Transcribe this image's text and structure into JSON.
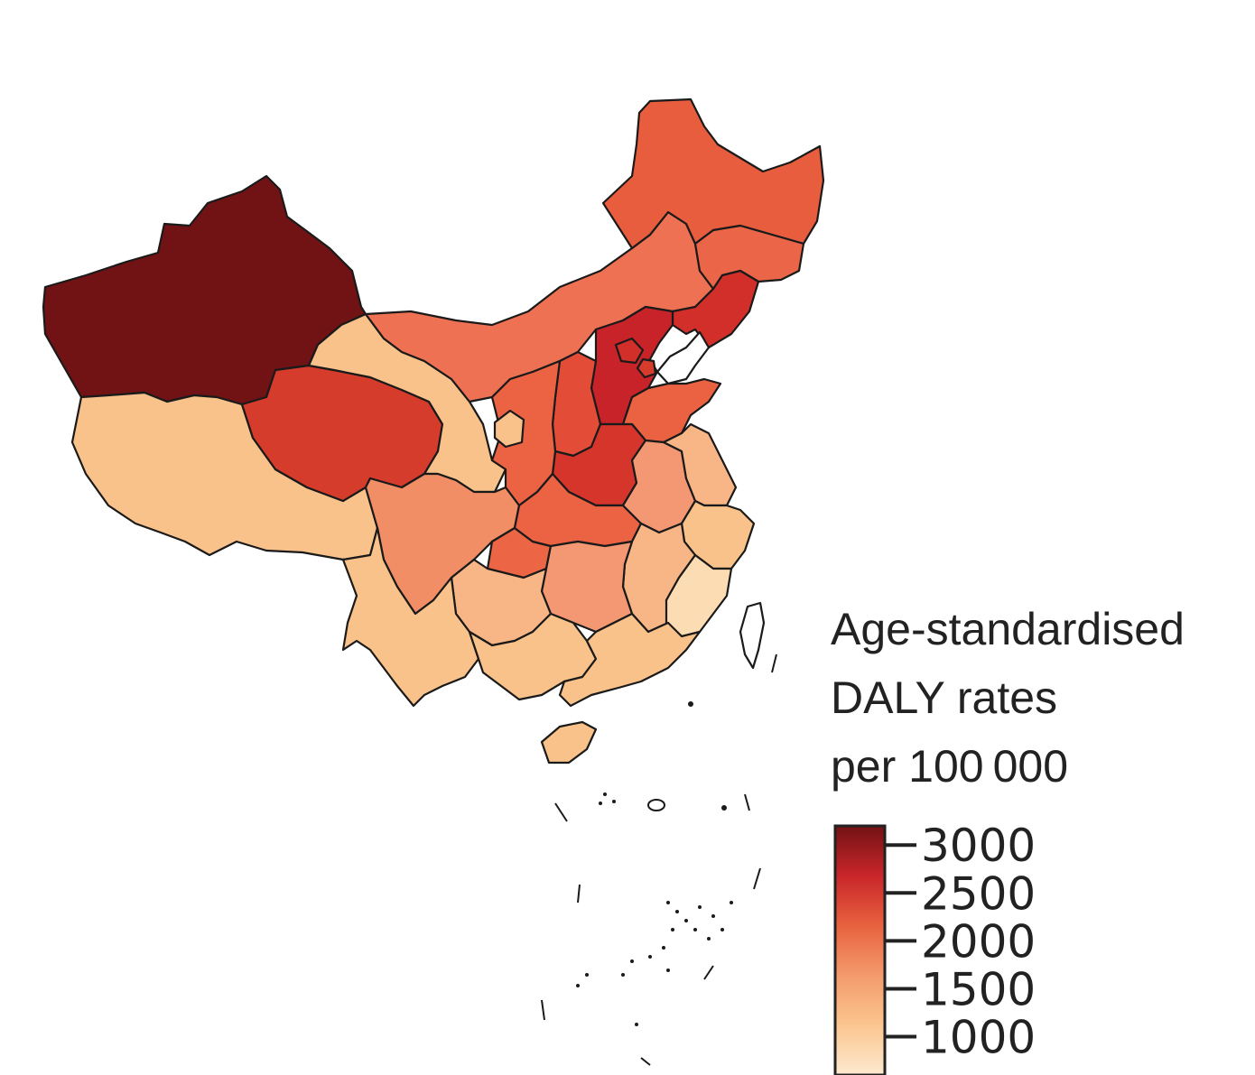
{
  "legend": {
    "title_lines": [
      "Age-standardised",
      "DALY rates",
      "per 100 000"
    ],
    "ticks": [
      {
        "label": "3000",
        "value": 3000
      },
      {
        "label": "2500",
        "value": 2500
      },
      {
        "label": "2000",
        "value": 2000
      },
      {
        "label": "1500",
        "value": 1500
      },
      {
        "label": "1000",
        "value": 1000
      }
    ],
    "range": [
      600,
      3200
    ],
    "gradient_stops": [
      "#fde9cf",
      "#fbc690",
      "#f39a6b",
      "#e8623f",
      "#c9262a",
      "#721214"
    ]
  },
  "regions": [
    {
      "name": "Xinjiang",
      "color": "#711315"
    },
    {
      "name": "Tibet",
      "color": "#f9c28a"
    },
    {
      "name": "Qinghai",
      "color": "#d53c2c"
    },
    {
      "name": "Gansu",
      "color": "#f9c28a"
    },
    {
      "name": "Inner Mongolia",
      "color": "#ef7154"
    },
    {
      "name": "Heilongjiang",
      "color": "#e85d3d"
    },
    {
      "name": "Jilin",
      "color": "#eb6648"
    },
    {
      "name": "Liaoning",
      "color": "#d32f2a"
    },
    {
      "name": "Hebei",
      "color": "#c9232a"
    },
    {
      "name": "Shanxi",
      "color": "#e34d37"
    },
    {
      "name": "Shandong",
      "color": "#eb6243"
    },
    {
      "name": "Henan",
      "color": "#d6352c"
    },
    {
      "name": "Shaanxi",
      "color": "#ec6344"
    },
    {
      "name": "Ningxia",
      "color": "#f9c28a"
    },
    {
      "name": "Sichuan",
      "color": "#f18e65"
    },
    {
      "name": "Chongqing",
      "color": "#ec6645"
    },
    {
      "name": "Hubei",
      "color": "#ec6344"
    },
    {
      "name": "Anhui",
      "color": "#f39873"
    },
    {
      "name": "Jiangsu",
      "color": "#f8b586"
    },
    {
      "name": "Zhejiang",
      "color": "#f9c28a"
    },
    {
      "name": "Jiangxi",
      "color": "#f8b586"
    },
    {
      "name": "Hunan",
      "color": "#f39873"
    },
    {
      "name": "Guizhou",
      "color": "#f8b586"
    },
    {
      "name": "Yunnan",
      "color": "#f9c28a"
    },
    {
      "name": "Guangxi",
      "color": "#f9c28a"
    },
    {
      "name": "Guangdong",
      "color": "#f9c28a"
    },
    {
      "name": "Fujian",
      "color": "#fcdcb3"
    },
    {
      "name": "Hainan",
      "color": "#f9c28a"
    },
    {
      "name": "Beijing",
      "color": "#d32f2a"
    },
    {
      "name": "Tianjin",
      "color": "#d53c2c"
    }
  ]
}
